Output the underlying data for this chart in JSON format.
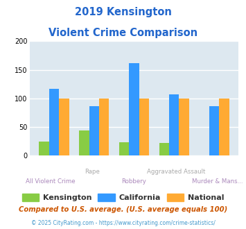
{
  "title_line1": "2019 Kensington",
  "title_line2": "Violent Crime Comparison",
  "title_color": "#2266cc",
  "categories": [
    "All Violent Crime",
    "Rape",
    "Robbery",
    "Aggravated Assault",
    "Murder & Mans..."
  ],
  "xlabel_top": [
    "Rape",
    "Aggravated Assault"
  ],
  "xlabel_bottom": [
    "All Violent Crime",
    "Robbery",
    "Murder & Mans..."
  ],
  "kensington": [
    25,
    44,
    24,
    22,
    0
  ],
  "california": [
    117,
    87,
    162,
    107,
    86
  ],
  "national": [
    100,
    100,
    100,
    100,
    100
  ],
  "bar_colors": {
    "kensington": "#88cc44",
    "california": "#3399ff",
    "national": "#ffaa33"
  },
  "ylim": [
    0,
    200
  ],
  "yticks": [
    0,
    50,
    100,
    150,
    200
  ],
  "legend_labels": [
    "Kensington",
    "California",
    "National"
  ],
  "legend_text_colors": [
    "#444444",
    "#444444",
    "#444444"
  ],
  "footnote1": "Compared to U.S. average. (U.S. average equals 100)",
  "footnote2": "© 2025 CityRating.com - https://www.cityrating.com/crime-statistics/",
  "footnote1_color": "#cc5500",
  "footnote2_color": "#4499cc",
  "bg_color": "#dde8f0",
  "fig_bg": "#ffffff",
  "top_label_color": "#aaaaaa",
  "bottom_label_color": "#aa88bb"
}
